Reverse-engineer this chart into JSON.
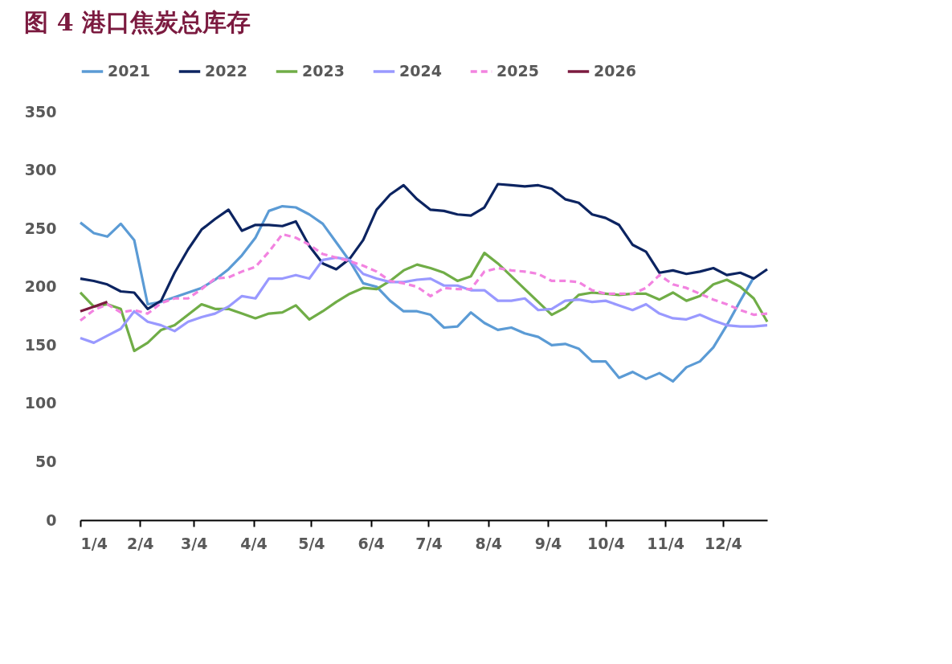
{
  "chart_data": {
    "type": "line",
    "title": "图 4 港口焦炭总库存",
    "x": [
      "--01-04",
      "--01-11",
      "--01-18",
      "--01-25",
      "--02-01",
      "--02-08",
      "--02-15",
      "--02-22",
      "--03-01",
      "--03-08",
      "--03-15",
      "--03-22",
      "--03-29",
      "--04-05",
      "--04-12",
      "--04-19",
      "--04-26",
      "--05-03",
      "--05-10",
      "--05-17",
      "--05-24",
      "--05-31",
      "--06-07",
      "--06-14",
      "--06-21",
      "--06-28",
      "--07-05",
      "--07-12",
      "--07-19",
      "--07-26",
      "--08-02",
      "--08-09",
      "--08-16",
      "--08-23",
      "--08-30",
      "--09-06",
      "--09-13",
      "--09-20",
      "--09-27",
      "--10-04",
      "--10-11",
      "--10-18",
      "--10-25",
      "--11-01",
      "--11-08",
      "--11-15",
      "--11-22",
      "--11-29",
      "--12-06",
      "--12-13",
      "--12-20",
      "--12-27"
    ],
    "series": [
      {
        "name": "2021",
        "color": "#5b9bd5",
        "values": [
          255,
          246,
          243,
          254,
          240,
          185,
          187,
          191,
          195,
          199,
          206,
          215,
          227,
          242,
          265,
          269,
          268,
          262,
          254,
          238,
          222,
          203,
          200,
          188,
          179,
          179,
          176,
          165,
          166,
          178,
          169,
          163,
          165,
          160,
          157,
          150,
          151,
          147,
          136,
          136,
          122,
          127,
          121,
          126,
          119,
          131,
          136,
          148,
          167,
          188,
          208,
          null
        ]
      },
      {
        "name": "2022",
        "color": "#0c2461",
        "values": [
          207,
          205,
          202,
          196,
          195,
          181,
          188,
          212,
          232,
          249,
          258,
          266,
          248,
          253,
          253,
          252,
          256,
          235,
          220,
          215,
          224,
          240,
          266,
          279,
          287,
          275,
          266,
          265,
          262,
          261,
          268,
          288,
          287,
          286,
          287,
          284,
          275,
          272,
          262,
          259,
          253,
          236,
          230,
          212,
          214,
          211,
          213,
          216,
          210,
          212,
          207,
          215
        ]
      },
      {
        "name": "2023",
        "color": "#70ad47",
        "values": [
          195,
          183,
          185,
          181,
          145,
          152,
          163,
          167,
          176,
          185,
          181,
          181,
          177,
          173,
          177,
          178,
          184,
          172,
          179,
          187,
          194,
          199,
          198,
          205,
          214,
          219,
          216,
          212,
          205,
          209,
          229,
          220,
          209,
          198,
          187,
          176,
          182,
          193,
          195,
          194,
          193,
          194,
          194,
          189,
          195,
          188,
          192,
          202,
          206,
          200,
          190,
          170
        ]
      },
      {
        "name": "2024",
        "color": "#9999ff",
        "values": [
          156,
          152,
          158,
          164,
          179,
          170,
          167,
          162,
          170,
          174,
          177,
          183,
          192,
          190,
          207,
          207,
          210,
          207,
          223,
          225,
          223,
          211,
          207,
          204,
          204,
          206,
          207,
          201,
          201,
          197,
          197,
          188,
          188,
          190,
          180,
          181,
          188,
          189,
          187,
          188,
          184,
          180,
          185,
          177,
          173,
          172,
          176,
          171,
          167,
          166,
          166,
          167
        ]
      },
      {
        "name": "2025",
        "color": "#f283e0",
        "line_style": "dashed",
        "values": [
          171,
          180,
          185,
          178,
          180,
          177,
          186,
          190,
          190,
          198,
          207,
          208,
          213,
          217,
          230,
          245,
          242,
          236,
          228,
          225,
          222,
          218,
          213,
          205,
          203,
          200,
          192,
          199,
          198,
          198,
          213,
          216,
          214,
          213,
          211,
          205,
          205,
          204,
          197,
          194,
          194,
          194,
          199,
          210,
          202,
          199,
          194,
          189,
          185,
          180,
          176,
          177
        ]
      },
      {
        "name": "2026",
        "color": "#7b1a3f",
        "values": [
          179,
          183,
          187,
          null,
          null,
          null,
          null,
          null,
          null,
          null,
          null,
          null,
          null,
          null,
          null,
          null,
          null,
          null,
          null,
          null,
          null,
          null,
          null,
          null,
          null,
          null,
          null,
          null,
          null,
          null,
          null,
          null,
          null,
          null,
          null,
          null,
          null,
          null,
          null,
          null,
          null,
          null,
          null,
          null,
          null,
          null,
          null,
          null,
          null,
          null,
          null,
          null
        ]
      }
    ],
    "xlim": [
      "--01-04",
      "--12-27"
    ],
    "xticks": [
      {
        "value": "--01-04",
        "label": "1/4"
      },
      {
        "value": "--02-04",
        "label": "2/4"
      },
      {
        "value": "--03-04",
        "label": "3/4"
      },
      {
        "value": "--04-04",
        "label": "4/4"
      },
      {
        "value": "--05-04",
        "label": "5/4"
      },
      {
        "value": "--06-04",
        "label": "6/4"
      },
      {
        "value": "--07-04",
        "label": "7/4"
      },
      {
        "value": "--08-04",
        "label": "8/4"
      },
      {
        "value": "--09-04",
        "label": "9/4"
      },
      {
        "value": "--10-04",
        "label": "10/4"
      },
      {
        "value": "--11-04",
        "label": "11/4"
      },
      {
        "value": "--12-04",
        "label": "12/4"
      }
    ],
    "ylim": [
      0,
      350
    ],
    "yticks": [
      0,
      50,
      100,
      150,
      200,
      250,
      300,
      350
    ],
    "grid": false,
    "legend": "top",
    "marker": "none"
  }
}
